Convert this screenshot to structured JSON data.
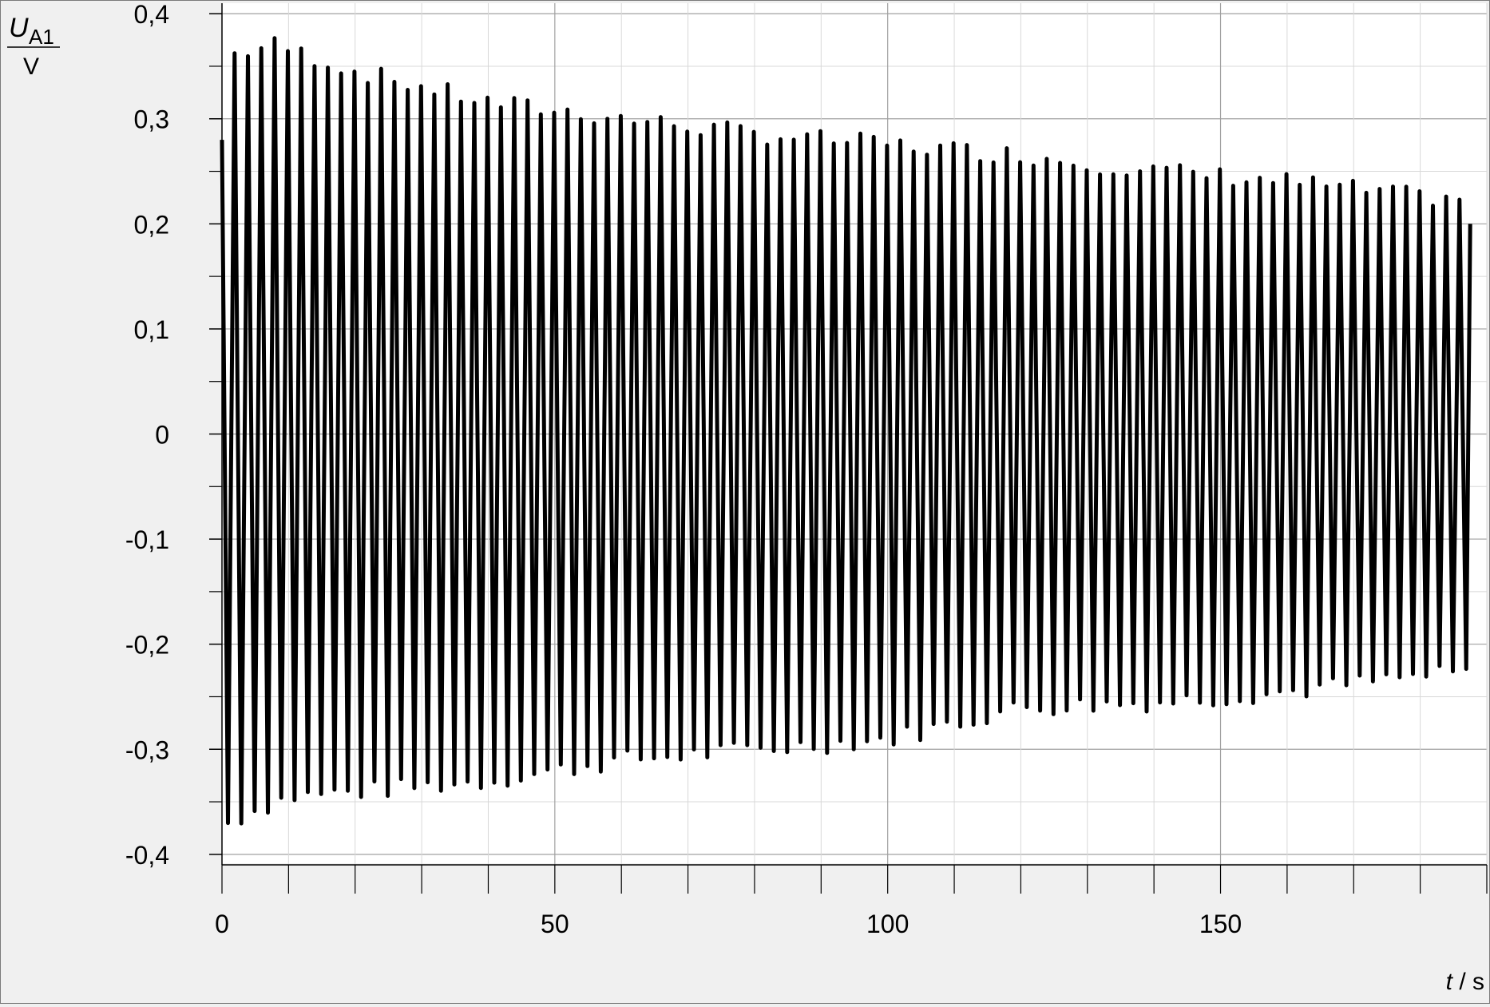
{
  "chart_data": {
    "type": "line",
    "ylabel_symbol": "U",
    "ylabel_subscript": "A1",
    "ylabel_unit": "V",
    "xlabel_symbol": "t",
    "xlabel_unit": " / s",
    "xlim": [
      0,
      190
    ],
    "ylim": [
      -0.41,
      0.41
    ],
    "x_major_ticks": [
      0,
      50,
      100,
      150
    ],
    "x_tick_labels": [
      "0",
      "50",
      "100",
      "150"
    ],
    "x_minor_step": 10,
    "y_ticks": [
      0.4,
      0.3,
      0.2,
      0.1,
      0,
      -0.1,
      -0.2,
      -0.3,
      -0.4
    ],
    "y_tick_labels": [
      "0,4",
      "0,3",
      "0,2",
      "0,1",
      "0",
      "-0,1",
      "-0,2",
      "-0,3",
      "-0,4"
    ],
    "grid": true,
    "line_color": "#000000",
    "series": [
      {
        "period_s": 2.0,
        "t_start": 0,
        "t_end": 187.5,
        "start_value": 0.28,
        "end_value": 0.2,
        "peak_envelope": [
          [
            1,
            0.36
          ],
          [
            8,
            0.37
          ],
          [
            20,
            0.345
          ],
          [
            40,
            0.315
          ],
          [
            60,
            0.3
          ],
          [
            80,
            0.285
          ],
          [
            100,
            0.275
          ],
          [
            120,
            0.265
          ],
          [
            140,
            0.25
          ],
          [
            160,
            0.24
          ],
          [
            180,
            0.225
          ],
          [
            187,
            0.225
          ]
        ],
        "trough_envelope": [
          [
            1,
            -0.37
          ],
          [
            4,
            -0.36
          ],
          [
            10,
            -0.345
          ],
          [
            20,
            -0.34
          ],
          [
            40,
            -0.33
          ],
          [
            60,
            -0.31
          ],
          [
            80,
            -0.3
          ],
          [
            100,
            -0.29
          ],
          [
            120,
            -0.26
          ],
          [
            140,
            -0.255
          ],
          [
            160,
            -0.245
          ],
          [
            180,
            -0.23
          ],
          [
            187,
            -0.228
          ]
        ]
      }
    ]
  }
}
